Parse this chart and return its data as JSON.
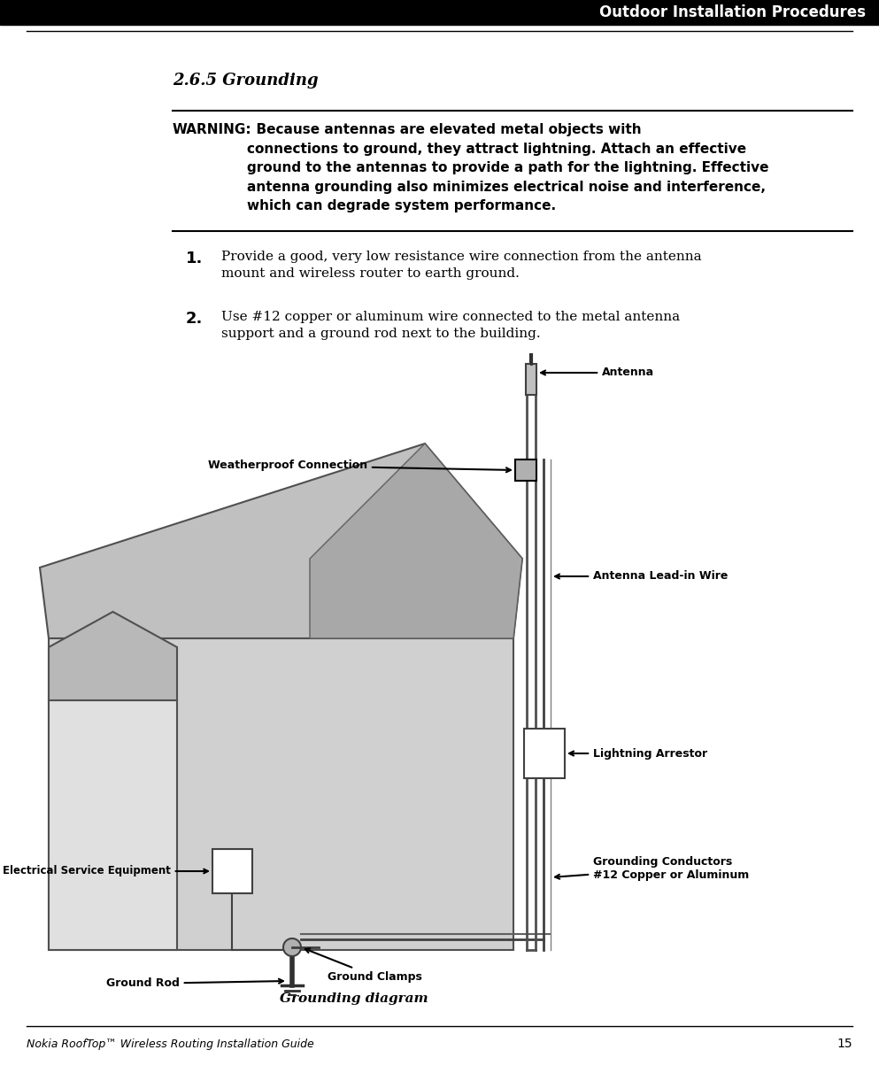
{
  "header_text": "Outdoor Installation Procedures",
  "section_title": "2.6.5 Grounding",
  "warning_label": "WARNING:",
  "warning_body": "  Because antennas are elevated metal objects with\nconnections to ground, they attract lightning. Attach an effective\nground to the antennas to provide a path for the lightning. Effective\nantenna grounding also minimizes electrical noise and interference,\nwhich can degrade system performance.",
  "step1_num": "1.",
  "step1_text": "Provide a good, very low resistance wire connection from the antenna\nmount and wireless router to earth ground.",
  "step2_num": "2.",
  "step2_text": "Use #12 copper or aluminum wire connected to the metal antenna\nsupport and a ground rod next to the building.",
  "diagram_caption": "Grounding diagram",
  "footer_text": "Nokia RoofTop™ Wireless Routing Installation Guide",
  "footer_page": "15",
  "bg_color": "#ffffff",
  "header_bg": "#000000",
  "label_antenna": "Antenna",
  "label_weatherproof": "Weatherproof Connection",
  "label_lead_in": "Antenna Lead-in Wire",
  "label_lightning": "Lightning Arrestor",
  "label_grounding_cond": "Grounding Conductors\n#12 Copper or Aluminum",
  "label_electrical": "Electrical Service Equipment",
  "label_ground_rod": "Ground Rod",
  "label_ground_clamps": "Ground Clamps"
}
